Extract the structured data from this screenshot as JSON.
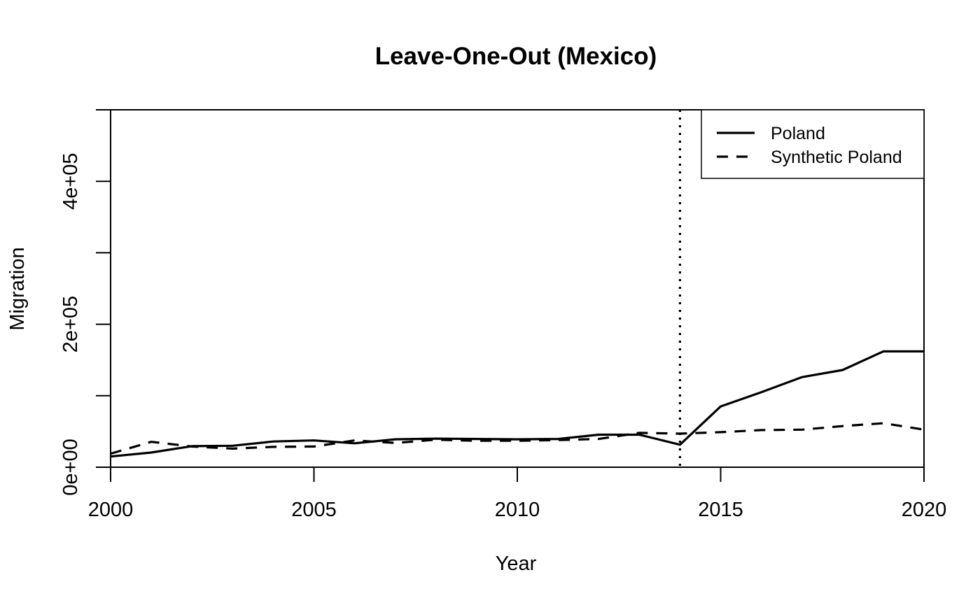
{
  "chart_data": {
    "type": "line",
    "title": "Leave-One-Out (Mexico)",
    "xlabel": "Year",
    "ylabel": "Migration",
    "xlim": [
      2000,
      2020
    ],
    "ylim": [
      0,
      500000
    ],
    "x_ticks": [
      2000,
      2005,
      2010,
      2015,
      2020
    ],
    "x_tick_labels": [
      "2000",
      "2005",
      "2010",
      "2015",
      "2020"
    ],
    "y_ticks": [
      0,
      100000,
      200000,
      300000,
      400000,
      500000
    ],
    "y_tick_labels": [
      "0e+00",
      "",
      "2e+05",
      "",
      "4e+05",
      ""
    ],
    "x": [
      2000,
      2001,
      2002,
      2003,
      2004,
      2005,
      2006,
      2007,
      2008,
      2009,
      2010,
      2011,
      2012,
      2013,
      2014,
      2015,
      2016,
      2017,
      2018,
      2019,
      2020
    ],
    "series": [
      {
        "name": "Poland",
        "style": "solid",
        "values": [
          15000,
          20500,
          29500,
          30000,
          36000,
          37500,
          33500,
          39000,
          40000,
          39500,
          39000,
          39500,
          45500,
          45500,
          31500,
          85000,
          105000,
          126000,
          136000,
          162000,
          162000
        ]
      },
      {
        "name": "Synthetic Poland",
        "style": "dashed",
        "values": [
          19000,
          35500,
          29000,
          26000,
          28500,
          29000,
          37500,
          34000,
          38500,
          37000,
          37000,
          38000,
          39500,
          48000,
          47000,
          49000,
          52000,
          52500,
          57500,
          61500,
          52500
        ]
      }
    ],
    "vline": {
      "x": 2014,
      "style": "dotted"
    },
    "legend": {
      "position": "top-right",
      "entries": [
        "Poland",
        "Synthetic Poland"
      ]
    },
    "grid": false,
    "color": "#000000"
  }
}
